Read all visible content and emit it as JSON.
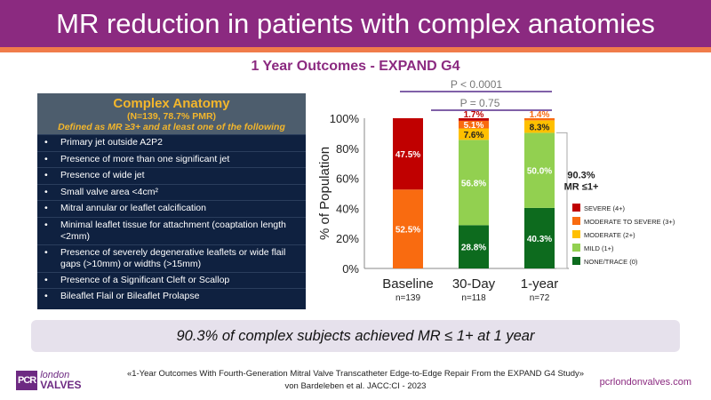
{
  "header": {
    "title": "MR reduction in patients with complex anatomies"
  },
  "subtitle": "1 Year Outcomes - EXPAND G4",
  "table": {
    "title": "Complex Anatomy",
    "subtitle": "(N=139, 78.7% PMR)",
    "definition": "Defined as MR ≥3+ and at least one of the following",
    "items": [
      "Primary jet outside A2P2",
      "Presence of more than one significant jet",
      "Presence of wide jet",
      "Small valve area <4cm²",
      "Mitral annular or leaflet calcification",
      "Minimal leaflet tissue for attachment (coaptation length <2mm)",
      "Presence of severely degenerative leaflets or wide flail gaps (>10mm) or widths (>15mm)",
      "Presence of a Significant Cleft or Scallop",
      "Bileaflet Flail or Bileaflet Prolapse"
    ],
    "bullet": "•"
  },
  "chart_data": {
    "type": "bar",
    "stacked": true,
    "ylabel": "% of Population",
    "ylim": [
      0,
      100
    ],
    "yticks": [
      "0%",
      "20%",
      "40%",
      "60%",
      "80%",
      "100%"
    ],
    "categories": [
      "Baseline",
      "30-Day",
      "1-year"
    ],
    "n_labels": [
      "n=139",
      "n=118",
      "n=72"
    ],
    "series": [
      {
        "name": "NONE/TRACE (0)",
        "color": "#0d6b1e",
        "values": [
          0,
          28.8,
          40.3
        ],
        "labels": [
          "",
          "28.8%",
          "40.3%"
        ]
      },
      {
        "name": "MILD (1+)",
        "color": "#92d050",
        "values": [
          0,
          56.8,
          50.0
        ],
        "labels": [
          "",
          "56.8%",
          "50.0%"
        ]
      },
      {
        "name": "MODERATE (2+)",
        "color": "#ffc000",
        "values": [
          0,
          7.6,
          8.3
        ],
        "labels": [
          "",
          "7.6%",
          "8.3%"
        ]
      },
      {
        "name": "MODERATE TO SEVERE (3+)",
        "color": "#f96b10",
        "values": [
          52.5,
          5.1,
          1.4
        ],
        "labels": [
          "52.5%",
          "5.1%",
          "1.4%"
        ]
      },
      {
        "name": "SEVERE (4+)",
        "color": "#c00000",
        "values": [
          47.5,
          1.7,
          0
        ],
        "labels": [
          "47.5%",
          "1.7%",
          ""
        ]
      }
    ],
    "legend_order": [
      4,
      3,
      2,
      1,
      0
    ],
    "pvalues": [
      "P < 0.0001",
      "P = 0.75"
    ],
    "bracket": {
      "line1": "90.3%",
      "line2": "MR ≤1+"
    }
  },
  "banner": "90.3% of complex subjects achieved MR ≤ 1+ at 1 year",
  "citation": {
    "line1": "«1-Year Outcomes With Fourth-Generation Mitral Valve Transcatheter Edge-to-Edge Repair From the EXPAND G4 Study»",
    "line2": "von Bardeleben et al. JACC:CI - 2023"
  },
  "logo": {
    "pcr": "PCR",
    "london": "london",
    "valves": "VALVES"
  },
  "url": "pcrlondonvalves.com"
}
